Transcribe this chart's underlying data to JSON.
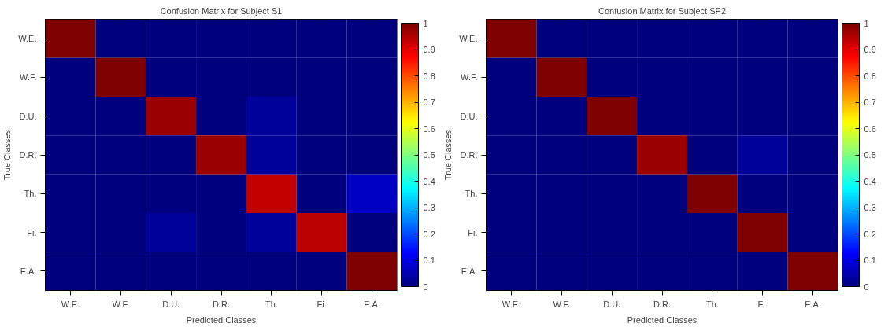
{
  "chart_data": [
    {
      "type": "heatmap",
      "title": "Confusion Matrix for Subject S1",
      "xlabel": "Predicted Classes",
      "ylabel": "True Classes",
      "categories": [
        "W.E.",
        "W.F.",
        "D.U.",
        "D.R.",
        "Th.",
        "Fi.",
        "E.A."
      ],
      "y_categories": [
        "W.E.",
        "W.F.",
        "D.U.",
        "D.R.",
        "Th.",
        "Fi.",
        "E.A."
      ],
      "cells": [
        [
          1,
          0,
          0,
          0,
          0,
          0,
          0
        ],
        [
          0,
          1,
          0,
          0,
          0,
          0,
          0
        ],
        [
          0,
          0,
          0.97,
          0,
          0.03,
          0,
          0
        ],
        [
          0,
          0,
          0,
          0.97,
          0.03,
          0,
          0
        ],
        [
          0,
          0,
          0,
          0,
          0.93,
          0,
          0.07
        ],
        [
          0,
          0,
          0.03,
          0,
          0.03,
          0.94,
          0
        ],
        [
          0,
          0,
          0,
          0,
          0,
          0,
          1
        ]
      ],
      "clim": [
        0,
        1
      ],
      "cticks": [
        0,
        0.1,
        0.2,
        0.3,
        0.4,
        0.5,
        0.6,
        0.7,
        0.8,
        0.9,
        1
      ],
      "grid": false
    },
    {
      "type": "heatmap",
      "title": "Confusion Matrix for Subject SP2",
      "xlabel": "Predicted Classes",
      "ylabel": "True Classes",
      "categories": [
        "W.E.",
        "W.F.",
        "D.U.",
        "D.R.",
        "Th.",
        "Fi.",
        "E.A."
      ],
      "y_categories": [
        "W.E.",
        "W.F.",
        "D.U.",
        "D.R.",
        "Th.",
        "Fi.",
        "E.A."
      ],
      "cells": [
        [
          1,
          0,
          0,
          0,
          0,
          0,
          0
        ],
        [
          0,
          1,
          0,
          0,
          0,
          0,
          0
        ],
        [
          0,
          0,
          1,
          0,
          0,
          0,
          0
        ],
        [
          0,
          0,
          0,
          0.97,
          0,
          0.03,
          0
        ],
        [
          0,
          0,
          0,
          0,
          1,
          0,
          0
        ],
        [
          0,
          0,
          0,
          0,
          0,
          1,
          0
        ],
        [
          0,
          0,
          0,
          0,
          0,
          0,
          1
        ]
      ],
      "clim": [
        0,
        1
      ],
      "cticks": [
        0,
        0.1,
        0.2,
        0.3,
        0.4,
        0.5,
        0.6,
        0.7,
        0.8,
        0.9,
        1
      ],
      "grid": false
    }
  ]
}
